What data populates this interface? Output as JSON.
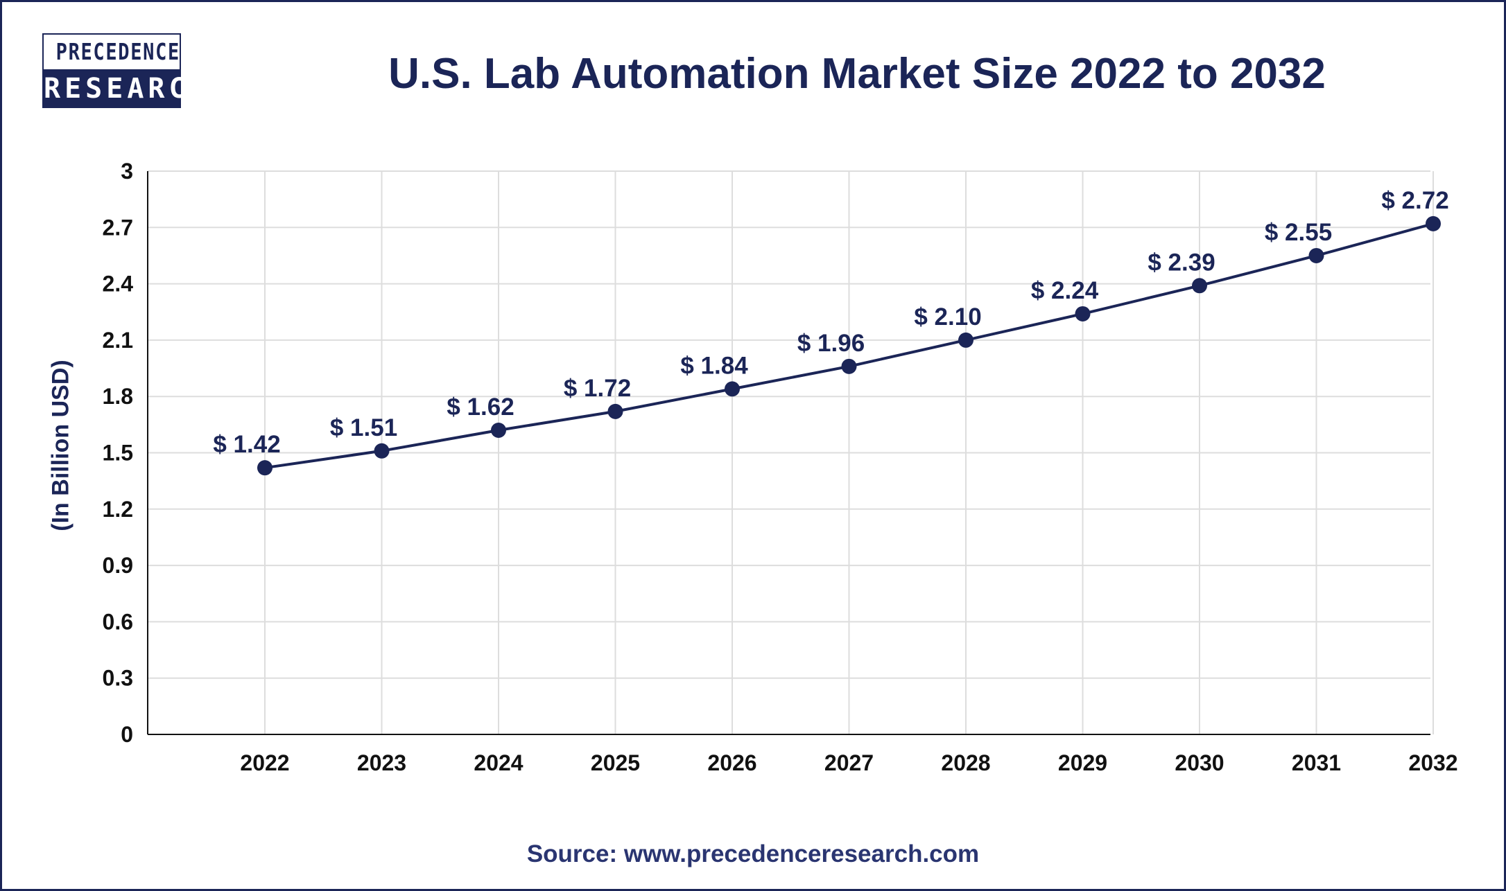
{
  "logo": {
    "line1": "PRECEDENCE",
    "line2": "RESEARCH"
  },
  "source": "Source: www.precedenceresearch.com",
  "colors": {
    "primary": "#1b2557",
    "grid": "#dddddd",
    "axis": "#111111"
  },
  "chart_data": {
    "type": "line",
    "title": "U.S. Lab Automation Market Size 2022 to 2032",
    "xlabel": "",
    "ylabel": "(In Billion USD)",
    "categories": [
      "2022",
      "2023",
      "2024",
      "2025",
      "2026",
      "2027",
      "2028",
      "2029",
      "2030",
      "2031",
      "2032"
    ],
    "series": [
      {
        "values": [
          1.42,
          1.51,
          1.62,
          1.72,
          1.84,
          1.96,
          2.1,
          2.24,
          2.39,
          2.55,
          2.72
        ],
        "labels": [
          "$ 1.42",
          "$ 1.51",
          "$ 1.62",
          "$ 1.72",
          "$ 1.84",
          "$ 1.96",
          "$ 2.10",
          "$ 2.24",
          "$ 2.39",
          "$ 2.55",
          "$ 2.72"
        ]
      }
    ],
    "ylim": [
      0,
      3
    ],
    "yticks": [
      "0",
      "0.3",
      "0.6",
      "0.9",
      "1.2",
      "1.5",
      "1.8",
      "2.1",
      "2.4",
      "2.7",
      "3"
    ],
    "grid": true,
    "legend": "none"
  }
}
